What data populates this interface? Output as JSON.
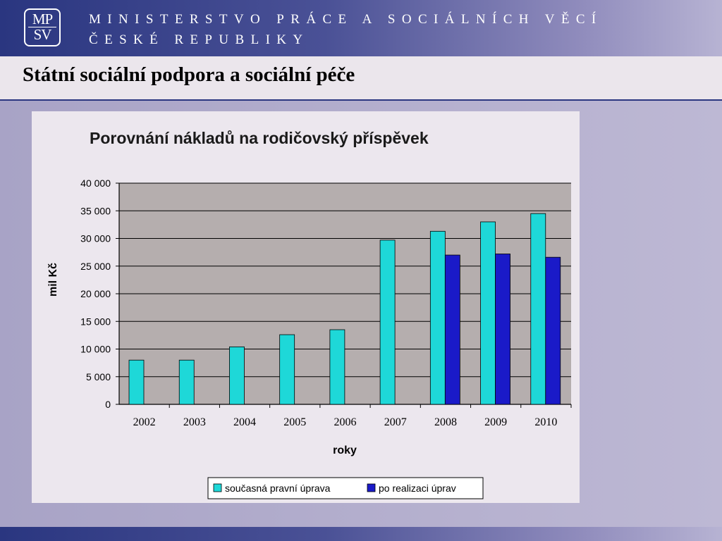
{
  "header": {
    "logo_line1": "MP",
    "logo_line2": "SV",
    "ministry_line1": "MINISTERSTVO PRÁCE A SOCIÁLNÍCH VĚCÍ",
    "ministry_line2": "ČESKÉ REPUBLIKY"
  },
  "slide_title": "Státní sociální podpora a sociální péče",
  "chart_data": {
    "type": "bar",
    "title": "Porovnání nákladů na rodičovský příspěvek",
    "xlabel": "roky",
    "ylabel": "mil Kč",
    "ylim": [
      0,
      40000
    ],
    "yticks": [
      0,
      5000,
      10000,
      15000,
      20000,
      25000,
      30000,
      35000,
      40000
    ],
    "ytick_labels": [
      "0",
      "5 000",
      "10 000",
      "15 000",
      "20 000",
      "25 000",
      "30 000",
      "35 000",
      "40 000"
    ],
    "grid": "horizontal",
    "legend_position": "bottom",
    "categories": [
      "2002",
      "2003",
      "2004",
      "2005",
      "2006",
      "2007",
      "2008",
      "2009",
      "2010"
    ],
    "series": [
      {
        "name": "současná pravní úprava",
        "color": "#1ed8d8",
        "values": [
          8000,
          8000,
          10400,
          12600,
          13500,
          29700,
          31300,
          33000,
          34500
        ]
      },
      {
        "name": "po realizaci úprav",
        "color": "#1a1ac8",
        "values": [
          null,
          null,
          null,
          null,
          null,
          null,
          27000,
          27200,
          26600
        ]
      }
    ],
    "plot_background": "#b5aeae"
  }
}
